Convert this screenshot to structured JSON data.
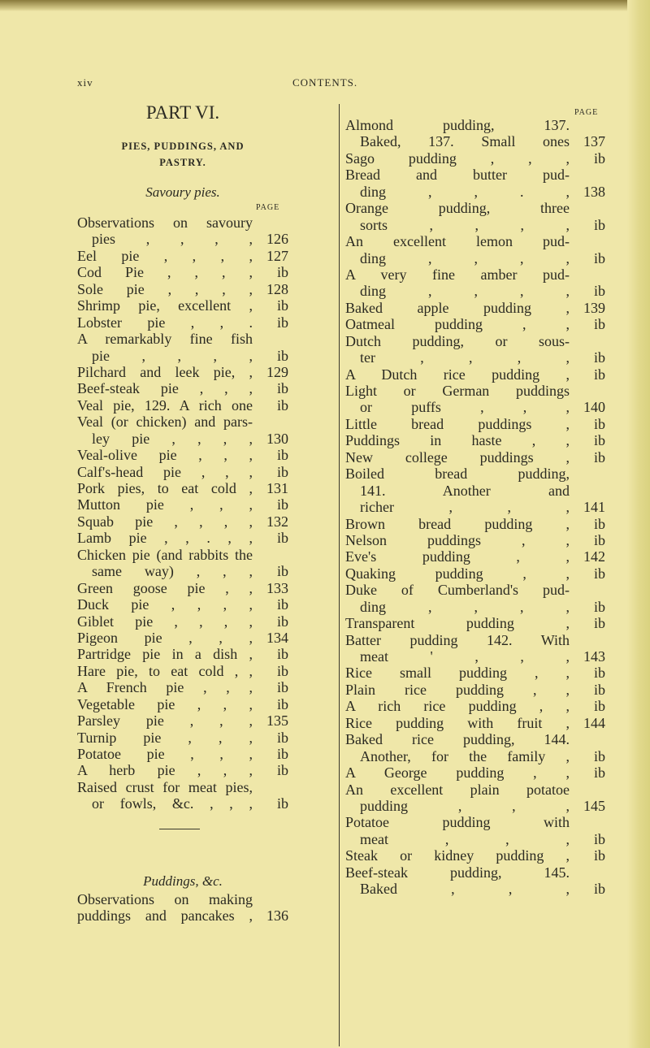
{
  "header": {
    "folio": "xiv",
    "running_title": "CONTENTS."
  },
  "left": {
    "part": "PART VI.",
    "section_line1": "PIES, PUDDINGS, AND",
    "section_line2": "PASTRY.",
    "subsection": "Savoury pies.",
    "page_label": "PAGE",
    "lines": [
      {
        "t": "Observations on savoury",
        "p": ""
      },
      {
        "t": "pies , , , ,",
        "p": "126",
        "c": true
      },
      {
        "t": "Eel pie , , , ,",
        "p": "127"
      },
      {
        "t": "Cod Pie , , , ,",
        "p": "ib"
      },
      {
        "t": "Sole pie , , , ,",
        "p": "128"
      },
      {
        "t": "Shrimp pie, excellent ,",
        "p": "ib"
      },
      {
        "t": "Lobster pie , , .",
        "p": "ib"
      },
      {
        "t": "A remarkably fine fish",
        "p": ""
      },
      {
        "t": "pie , , , ,",
        "p": "ib",
        "c": true
      },
      {
        "t": "Pilchard and leek pie, ,",
        "p": "129"
      },
      {
        "t": "Beef-steak pie , , ,",
        "p": "ib"
      },
      {
        "t": "Veal pie, 129. A rich one",
        "p": "ib"
      },
      {
        "t": "Veal (or chicken) and pars-",
        "p": ""
      },
      {
        "t": "ley pie , , , ,",
        "p": "130",
        "c": true
      },
      {
        "t": "Veal-olive pie , , ,",
        "p": "ib"
      },
      {
        "t": "Calf's-head pie , , ,",
        "p": "ib"
      },
      {
        "t": "Pork pies, to eat cold ,",
        "p": "131"
      },
      {
        "t": "Mutton pie , , ,",
        "p": "ib"
      },
      {
        "t": "Squab pie , , , ,",
        "p": "132"
      },
      {
        "t": "Lamb pie , , . , ,",
        "p": "ib"
      },
      {
        "t": "Chicken pie (and rabbits the",
        "p": ""
      },
      {
        "t": "same way) , , ,",
        "p": "ib",
        "c": true
      },
      {
        "t": "Green goose pie , ,",
        "p": "133"
      },
      {
        "t": "Duck pie , , , ,",
        "p": "ib"
      },
      {
        "t": "Giblet pie , , , ,",
        "p": "ib"
      },
      {
        "t": "Pigeon pie , , ,",
        "p": "134"
      },
      {
        "t": "Partridge pie in a dish ,",
        "p": "ib"
      },
      {
        "t": "Hare pie, to eat cold , ,",
        "p": "ib"
      },
      {
        "t": "A French pie , , ,",
        "p": "ib"
      },
      {
        "t": "Vegetable pie , , ,",
        "p": "ib"
      },
      {
        "t": "Parsley pie , , ,",
        "p": "135"
      },
      {
        "t": "Turnip pie , , ,",
        "p": "ib"
      },
      {
        "t": "Potatoe pie , , ,",
        "p": "ib"
      },
      {
        "t": "A herb pie , , ,",
        "p": "ib"
      },
      {
        "t": "Raised crust for meat pies,",
        "p": ""
      },
      {
        "t": "or fowls, &c. , , ,",
        "p": "ib",
        "c": true
      }
    ],
    "subsection2": "Puddings, &c.",
    "lines2": [
      {
        "t": "Observations on making",
        "p": ""
      },
      {
        "t": "puddings and pancakes ,",
        "p": "136"
      }
    ]
  },
  "right": {
    "page_label": "PAGE",
    "lines": [
      {
        "t": "Almond pudding, 137.",
        "p": ""
      },
      {
        "t": "Baked, 137. Small ones",
        "p": "137",
        "c": true
      },
      {
        "t": "Sago pudding , , ,",
        "p": "ib"
      },
      {
        "t": "Bread and butter pud-",
        "p": ""
      },
      {
        "t": "ding , , . ,",
        "p": "138",
        "c": true
      },
      {
        "t": "Orange pudding, three",
        "p": ""
      },
      {
        "t": "sorts , , , ,",
        "p": "ib",
        "c": true
      },
      {
        "t": "An excellent lemon pud-",
        "p": ""
      },
      {
        "t": "ding , , , ,",
        "p": "ib",
        "c": true
      },
      {
        "t": "A very fine amber pud-",
        "p": ""
      },
      {
        "t": "ding , , , ,",
        "p": "ib",
        "c": true
      },
      {
        "t": "Baked apple pudding ,",
        "p": "139"
      },
      {
        "t": "Oatmeal pudding , ,",
        "p": "ib"
      },
      {
        "t": "Dutch pudding, or sous-",
        "p": ""
      },
      {
        "t": "ter , , , ,",
        "p": "ib",
        "c": true
      },
      {
        "t": "A Dutch rice pudding ,",
        "p": "ib"
      },
      {
        "t": "Light or German puddings",
        "p": ""
      },
      {
        "t": "or puffs , , ,",
        "p": "140",
        "c": true
      },
      {
        "t": "Little bread puddings ,",
        "p": "ib"
      },
      {
        "t": "Puddings in haste , ,",
        "p": "ib"
      },
      {
        "t": "New college puddings ,",
        "p": "ib"
      },
      {
        "t": "Boiled bread pudding,",
        "p": ""
      },
      {
        "t": "141. Another and",
        "p": "",
        "c": true
      },
      {
        "t": "richer , , ,",
        "p": "141",
        "c": true
      },
      {
        "t": "Brown bread pudding ,",
        "p": "ib"
      },
      {
        "t": "Nelson puddings , ,",
        "p": "ib"
      },
      {
        "t": "Eve's pudding , ,",
        "p": "142"
      },
      {
        "t": "Quaking pudding , ,",
        "p": "ib"
      },
      {
        "t": "Duke of Cumberland's pud-",
        "p": ""
      },
      {
        "t": "ding , , , ,",
        "p": "ib",
        "c": true
      },
      {
        "t": "Transparent pudding ,",
        "p": "ib"
      },
      {
        "t": "Batter pudding 142. With",
        "p": ""
      },
      {
        "t": "meat ' , , ,",
        "p": "143",
        "c": true
      },
      {
        "t": "Rice small pudding , ,",
        "p": "ib"
      },
      {
        "t": "Plain rice pudding , ,",
        "p": "ib"
      },
      {
        "t": "A rich rice pudding , ,",
        "p": "ib"
      },
      {
        "t": "Rice pudding with fruit ,",
        "p": "144"
      },
      {
        "t": "Baked rice pudding, 144.",
        "p": ""
      },
      {
        "t": "Another, for the family ,",
        "p": "ib",
        "c": true
      },
      {
        "t": "A George pudding , ,",
        "p": "ib"
      },
      {
        "t": "An excellent plain potatoe",
        "p": ""
      },
      {
        "t": "pudding , , ,",
        "p": "145",
        "c": true
      },
      {
        "t": "Potatoe pudding with",
        "p": ""
      },
      {
        "t": "meat , , ,",
        "p": "ib",
        "c": true
      },
      {
        "t": "Steak or kidney pudding ,",
        "p": "ib"
      },
      {
        "t": "Beef-steak pudding, 145.",
        "p": ""
      },
      {
        "t": "Baked , , ,",
        "p": "ib",
        "c": true
      }
    ]
  }
}
